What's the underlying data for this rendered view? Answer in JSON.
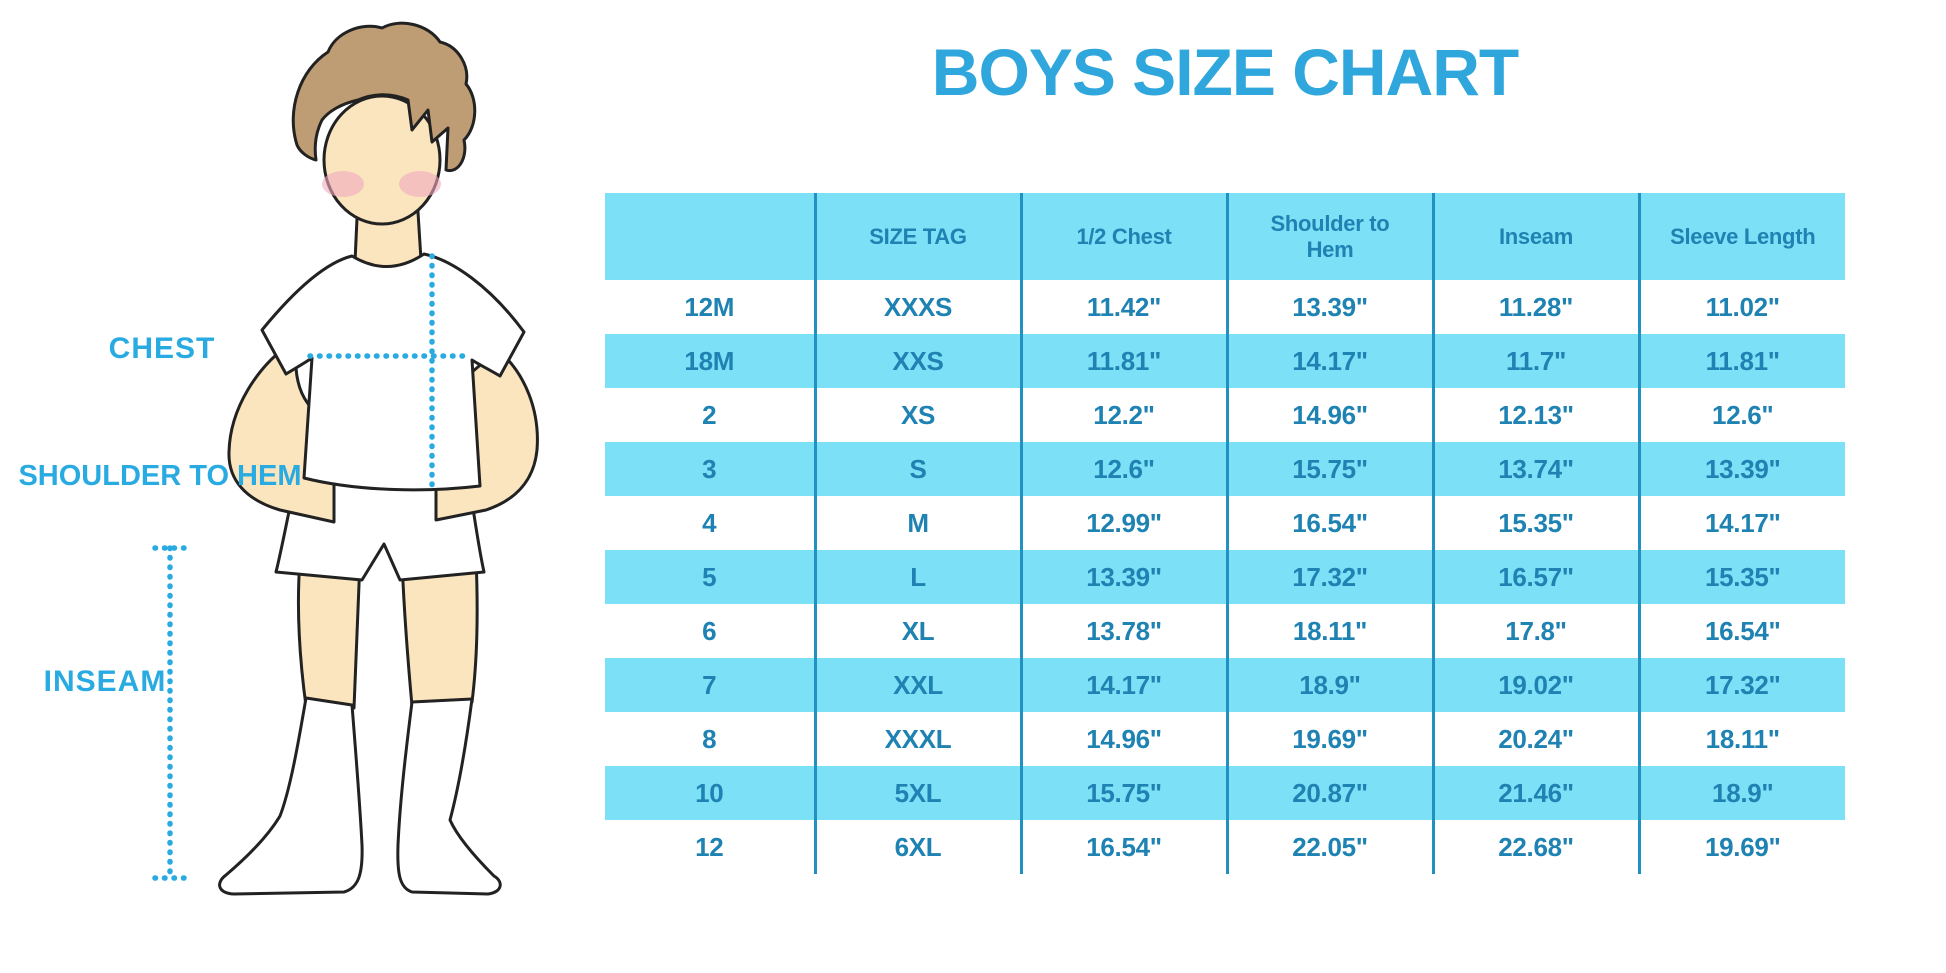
{
  "title": "BOYS SIZE CHART",
  "diagram": {
    "labels": {
      "chest": "CHEST",
      "shoulder_to_hem": "SHOULDER TO HEM",
      "inseam": "INSEAM"
    }
  },
  "chart_data": {
    "type": "table",
    "title": "BOYS SIZE CHART",
    "columns": [
      "",
      "SIZE TAG",
      "1/2 Chest",
      "Shoulder to Hem",
      "Inseam",
      "Sleeve Length"
    ],
    "rows": [
      [
        "12M",
        "XXXS",
        "11.42\"",
        "13.39\"",
        "11.28\"",
        "11.02\""
      ],
      [
        "18M",
        "XXS",
        "11.81\"",
        "14.17\"",
        "11.7\"",
        "11.81\""
      ],
      [
        "2",
        "XS",
        "12.2\"",
        "14.96\"",
        "12.13\"",
        "12.6\""
      ],
      [
        "3",
        "S",
        "12.6\"",
        "15.75\"",
        "13.74\"",
        "13.39\""
      ],
      [
        "4",
        "M",
        "12.99\"",
        "16.54\"",
        "15.35\"",
        "14.17\""
      ],
      [
        "5",
        "L",
        "13.39\"",
        "17.32\"",
        "16.57\"",
        "15.35\""
      ],
      [
        "6",
        "XL",
        "13.78\"",
        "18.11\"",
        "17.8\"",
        "16.54\""
      ],
      [
        "7",
        "XXL",
        "14.17\"",
        "18.9\"",
        "19.02\"",
        "17.32\""
      ],
      [
        "8",
        "XXXL",
        "14.96\"",
        "19.69\"",
        "20.24\"",
        "18.11\""
      ],
      [
        "10",
        "5XL",
        "15.75\"",
        "20.87\"",
        "21.46\"",
        "18.9\""
      ],
      [
        "12",
        "6XL",
        "16.54\"",
        "22.05\"",
        "22.68\"",
        "19.69\""
      ]
    ],
    "layout": "header row and every second data row shaded light blue; vertical separators only; no outer border",
    "units": "inches"
  },
  "colors": {
    "title_blue": "#2FA6DC",
    "label_blue": "#29ABE2",
    "table_fill": "#7CE0F7",
    "table_text": "#1E82B2",
    "grid_line": "#2191C2",
    "dotted_line": "#29ABE2",
    "skin": "#FBE5BF",
    "hair": "#BE9D75",
    "blush": "#F2A8BE",
    "outline": "#222222"
  }
}
